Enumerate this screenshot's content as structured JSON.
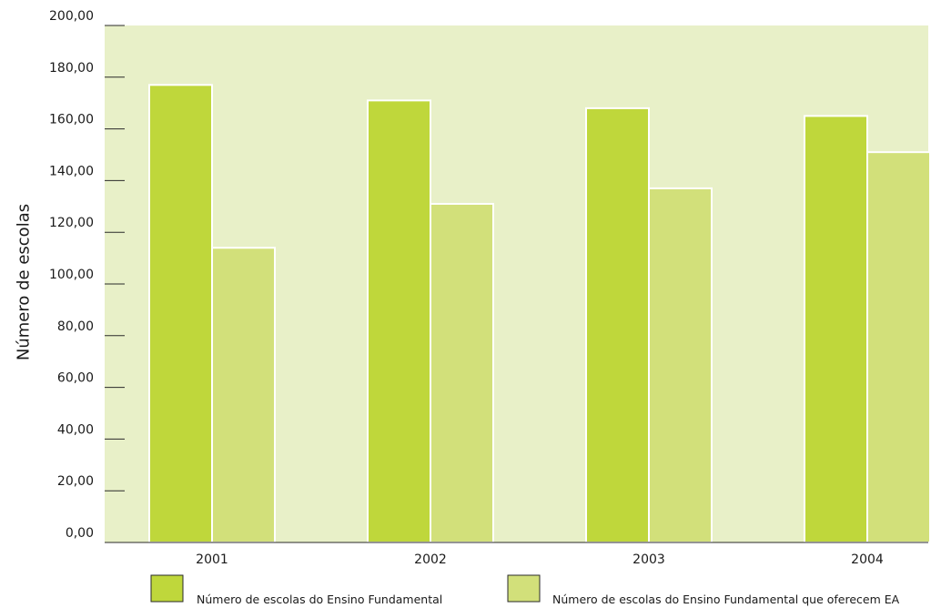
{
  "chart_data": {
    "type": "bar",
    "categories": [
      "2001",
      "2002",
      "2003",
      "2004"
    ],
    "series": [
      {
        "name": "Número de escolas do Ensino Fundamental",
        "values": [
          177,
          171,
          168,
          165
        ],
        "color": "#bfd73b"
      },
      {
        "name": "Número de escolas do Ensino Fundamental que oferecem EA",
        "values": [
          114,
          131,
          137,
          151
        ],
        "color": "#d2e07a"
      }
    ],
    "ylabel": "Número de escolas",
    "xlabel": "",
    "ylim": [
      0,
      200
    ],
    "yticks": [
      "0,00",
      "20,00",
      "40,00",
      "60,00",
      "80,00",
      "100,00",
      "120,00",
      "140,00",
      "160,00",
      "180,00",
      "200,00"
    ],
    "grid": false,
    "legend_position": "bottom",
    "colors": {
      "plot_background": "#e8f0c8",
      "axis": "#2a2a2a",
      "bar_border": "#ffffff"
    }
  }
}
